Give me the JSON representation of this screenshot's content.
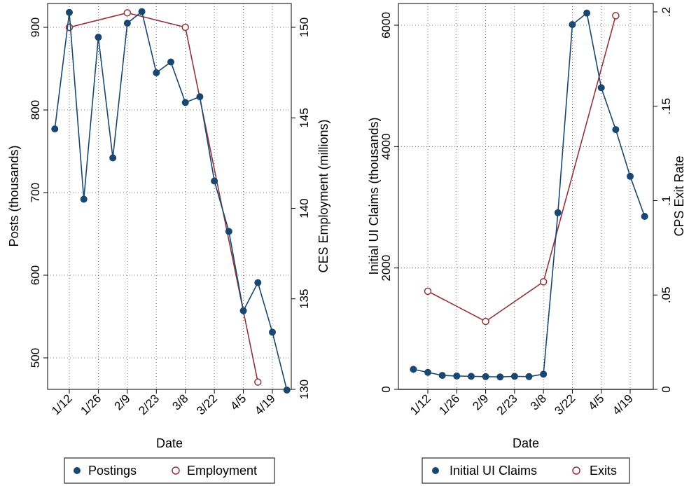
{
  "colors": {
    "blue": "#1a476f",
    "red": "#90353b"
  },
  "chart_data": [
    {
      "type": "line",
      "xlabel": "Date",
      "x_tick_labels": [
        "1/12",
        "1/26",
        "2/9",
        "2/23",
        "3/8",
        "3/22",
        "4/5",
        "4/19"
      ],
      "x_ticks": [
        12,
        26,
        40,
        54,
        68,
        82,
        96,
        110
      ],
      "xlim": [
        2,
        116
      ],
      "y_left": {
        "label": "Posts (thousands)",
        "ticks": [
          500,
          600,
          700,
          800,
          900
        ],
        "tick_labels": [
          "500",
          "600",
          "700",
          "800",
          "900"
        ],
        "lim": [
          460,
          923
        ]
      },
      "y_right": {
        "label": "CES Employment (millions)",
        "ticks": [
          130,
          135,
          140,
          145,
          150
        ],
        "tick_labels": [
          "130",
          "135",
          "140",
          "145",
          "150"
        ],
        "lim": [
          130,
          151.2
        ]
      },
      "grid": true,
      "legend_position": "bottom",
      "series": [
        {
          "name": "Postings",
          "axis": "left",
          "marker": "filled",
          "x": [
            5,
            12,
            19,
            26,
            33,
            40,
            47,
            54,
            61,
            68,
            75,
            82,
            89,
            96,
            103,
            110,
            117
          ],
          "y": [
            777,
            918,
            692,
            888,
            742,
            905,
            919,
            845,
            858,
            809,
            816,
            714,
            653,
            557,
            591,
            531,
            461
          ]
        },
        {
          "name": "Employment",
          "axis": "right",
          "marker": "hollow",
          "x": [
            12,
            40,
            68,
            103
          ],
          "y": [
            150.0,
            150.8,
            150.0,
            130.4
          ]
        }
      ]
    },
    {
      "type": "line",
      "xlabel": "Date",
      "x_tick_labels": [
        "1/12",
        "1/26",
        "2/9",
        "2/23",
        "3/8",
        "3/22",
        "4/5",
        "4/19"
      ],
      "x_ticks": [
        12,
        26,
        40,
        54,
        68,
        82,
        96,
        110
      ],
      "xlim": [
        2,
        116
      ],
      "y_left": {
        "label": "Initial UI Claims (thousands)",
        "ticks": [
          0,
          2000,
          4000,
          6000
        ],
        "tick_labels": [
          "0",
          "2000",
          "4000",
          "6000"
        ],
        "lim": [
          0,
          6200
        ]
      },
      "y_right": {
        "label": "CPS Exit Rate",
        "ticks": [
          0,
          0.05,
          0.1,
          0.15,
          0.2
        ],
        "tick_labels": [
          "0",
          ".05",
          ".1",
          ".15",
          ".2"
        ],
        "lim": [
          0,
          0.2
        ]
      },
      "grid": true,
      "legend_position": "bottom",
      "series": [
        {
          "name": "Initial UI Claims",
          "axis": "left",
          "marker": "filled",
          "x": [
            5,
            12,
            19,
            26,
            33,
            40,
            47,
            54,
            61,
            68,
            75,
            82,
            89,
            96,
            103,
            110,
            117
          ],
          "y": [
            330,
            280,
            230,
            220,
            215,
            210,
            205,
            215,
            210,
            250,
            2910,
            6010,
            6200,
            4970,
            4280,
            3510,
            2850
          ]
        },
        {
          "name": "Exits",
          "axis": "right",
          "marker": "hollow",
          "x": [
            12,
            40,
            68,
            103
          ],
          "y": [
            0.052,
            0.036,
            0.057,
            0.198
          ]
        }
      ]
    }
  ],
  "legends": [
    {
      "items": [
        "Postings",
        "Employment"
      ]
    },
    {
      "items": [
        "Initial UI Claims",
        "Exits"
      ]
    }
  ]
}
